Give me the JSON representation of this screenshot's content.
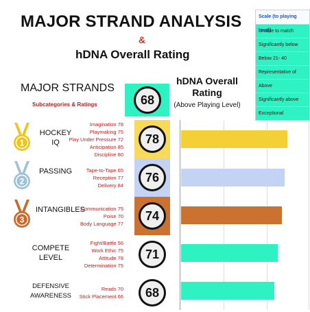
{
  "header": {
    "title": "MAJOR STRAND ANALYSIS",
    "amp": "&",
    "subtitle": "hDNA Overall Rating"
  },
  "scale": {
    "heading": "Scale (to playing level)",
    "items": [
      "Unable to match",
      "Significantly below",
      "Below 21- 40",
      "Representative of",
      "Above",
      "Significantly above",
      "Exceptional"
    ],
    "color": "#2ff2c2"
  },
  "major": {
    "title": "MAJOR STRANDS",
    "subtitle": "Subcategories & Ratings",
    "overall_value": "68",
    "overall_label": "hDNA Overall Rating",
    "overall_sub": "(Above Playing Level)"
  },
  "strands": [
    {
      "label": "HOCKEY IQ",
      "rating": "78",
      "rating_num": 78,
      "color": "#f3d034",
      "box_color": "#f7da5a",
      "medal": "1",
      "medal_color": "#f0c419",
      "subs": [
        "Imagination 78",
        "Playmaking 75",
        "Play Under Pressure 72",
        "Anticipation 85",
        "Discipline 80"
      ]
    },
    {
      "label": "PASSING",
      "rating": "76",
      "rating_num": 76,
      "color": "#c4d3f4",
      "box_color": "#c4d3f4",
      "medal": "2",
      "medal_color": "#9fc3d6",
      "subs": [
        "Tape-to-Tape 65",
        "Reception 77",
        "Delivery 84"
      ]
    },
    {
      "label": "INTANGIBLES",
      "rating": "74",
      "rating_num": 74,
      "color": "#cc7231",
      "box_color": "#cc7231",
      "medal": "3",
      "medal_color": "#c86a2c",
      "subs": [
        "Communication 75",
        "Poise 70",
        "Body Language 77"
      ]
    },
    {
      "label": "COMPETE LEVEL",
      "rating": "71",
      "rating_num": 71,
      "color": "#2ff2c2",
      "box_color": "#ffffff",
      "medal": "",
      "medal_color": "",
      "subs": [
        "Fight/Battle 56",
        "Work Ethic 75",
        "Attitude 78",
        "Determination 75"
      ]
    },
    {
      "label": "DEFENSIVE AWARENESS",
      "rating": "68",
      "rating_num": 68,
      "color": "#2ff2c2",
      "box_color": "#ffffff",
      "medal": "",
      "medal_color": "",
      "subs": [
        "Reads 70",
        "Stick Placement 66"
      ]
    }
  ]
}
